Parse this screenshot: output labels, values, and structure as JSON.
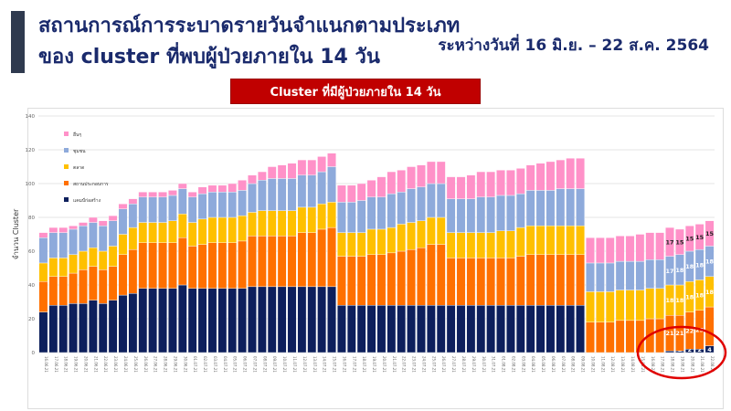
{
  "header": {
    "title_line1": "สถานการณ์การระบาดรายวันจำแนกตามประเภท",
    "title_line2": "ของ cluster ที่พบผู้ป่วยภายใน 14 วัน",
    "date_range": "ระหว่างวันที่ 16 มิ.ย. – 22 ส.ค. 2564",
    "banner": "Cluster ที่มีผู้ป่วยภายใน 14 วัน"
  },
  "chart_data": {
    "type": "bar",
    "stacked": true,
    "title": "Cluster ที่มีผู้ป่วยภายใน 14 วัน",
    "xlabel": "",
    "ylabel": "จำนวน Cluster",
    "ylim": [
      0,
      140
    ],
    "yticks": [
      0,
      20,
      40,
      60,
      80,
      100,
      120,
      140
    ],
    "grid": true,
    "legend_position": "top-left",
    "start_date": "2021-06-16",
    "end_date": "2021-08-22",
    "date_format": "DD.MM.YY",
    "series": [
      {
        "name": "แคมป์ก่อสร้าง",
        "color": "#0d1f5c",
        "values": [
          24,
          28,
          28,
          29,
          29,
          31,
          29,
          31,
          34,
          35,
          38,
          38,
          38,
          38,
          40,
          38,
          38,
          38,
          38,
          38,
          38,
          39,
          39,
          39,
          39,
          39,
          39,
          39,
          39,
          39,
          28,
          28,
          28,
          28,
          28,
          28,
          28,
          28,
          28,
          28,
          28,
          28,
          28,
          28,
          28,
          28,
          28,
          28,
          28,
          28,
          28,
          28,
          28,
          28,
          28,
          0,
          0,
          0,
          0,
          0,
          0,
          0,
          0,
          1,
          1,
          2,
          2,
          4
        ]
      },
      {
        "name": "สถานประกอบการ",
        "color": "#ff7000",
        "values": [
          18,
          17,
          17,
          18,
          20,
          20,
          20,
          20,
          24,
          26,
          27,
          27,
          27,
          27,
          28,
          25,
          26,
          27,
          27,
          27,
          28,
          30,
          30,
          30,
          30,
          30,
          32,
          32,
          34,
          35,
          29,
          29,
          29,
          30,
          30,
          31,
          32,
          33,
          34,
          36,
          36,
          28,
          28,
          28,
          28,
          28,
          28,
          28,
          29,
          30,
          30,
          30,
          30,
          30,
          30,
          18,
          18,
          18,
          19,
          19,
          19,
          20,
          20,
          21,
          21,
          22,
          23,
          23
        ]
      },
      {
        "name": "ตลาด",
        "color": "#ffc000",
        "values": [
          11,
          11,
          11,
          11,
          11,
          11,
          11,
          12,
          12,
          13,
          12,
          12,
          12,
          13,
          14,
          14,
          15,
          15,
          15,
          15,
          15,
          14,
          15,
          15,
          15,
          15,
          15,
          15,
          15,
          15,
          14,
          14,
          14,
          15,
          15,
          15,
          16,
          16,
          16,
          16,
          16,
          15,
          15,
          15,
          15,
          15,
          16,
          16,
          17,
          17,
          17,
          17,
          17,
          17,
          17,
          18,
          18,
          18,
          18,
          18,
          18,
          18,
          18,
          18,
          18,
          18,
          18,
          18
        ]
      },
      {
        "name": "ชุมชน",
        "color": "#8eaadb",
        "values": [
          15,
          15,
          15,
          15,
          15,
          15,
          15,
          15,
          15,
          14,
          15,
          15,
          15,
          15,
          15,
          15,
          15,
          15,
          15,
          15,
          15,
          17,
          18,
          19,
          19,
          19,
          19,
          19,
          19,
          21,
          18,
          18,
          19,
          19,
          19,
          20,
          19,
          20,
          20,
          20,
          20,
          20,
          20,
          20,
          21,
          21,
          21,
          21,
          20,
          21,
          21,
          21,
          22,
          22,
          22,
          17,
          17,
          17,
          17,
          17,
          17,
          17,
          17,
          17,
          18,
          18,
          18,
          18
        ]
      },
      {
        "name": "อื่นๆ",
        "color": "#ff91c8",
        "values": [
          3,
          3,
          3,
          2,
          2,
          3,
          3,
          3,
          3,
          3,
          3,
          3,
          3,
          3,
          3,
          3,
          4,
          4,
          4,
          5,
          6,
          5,
          5,
          7,
          8,
          9,
          9,
          9,
          9,
          8,
          10,
          10,
          10,
          10,
          12,
          13,
          13,
          13,
          13,
          13,
          13,
          13,
          13,
          14,
          15,
          15,
          15,
          15,
          15,
          15,
          16,
          17,
          17,
          18,
          18,
          15,
          15,
          15,
          15,
          15,
          16,
          16,
          16,
          17,
          15,
          15,
          15,
          15
        ]
      }
    ],
    "data_labels": {
      "first_labeled_index": 63,
      "series_labels": [
        [
          "",
          "1",
          "2",
          "2",
          "4"
        ],
        [
          "21",
          "21",
          "22",
          "23",
          ""
        ],
        [
          "18",
          "18",
          "18",
          "18",
          "18"
        ],
        [
          "17",
          "18",
          "18",
          "18",
          "18"
        ],
        [
          "17",
          "15",
          "15",
          "15",
          "15"
        ]
      ]
    },
    "annotation": "red-ellipse-around-construction-camp-rise"
  }
}
